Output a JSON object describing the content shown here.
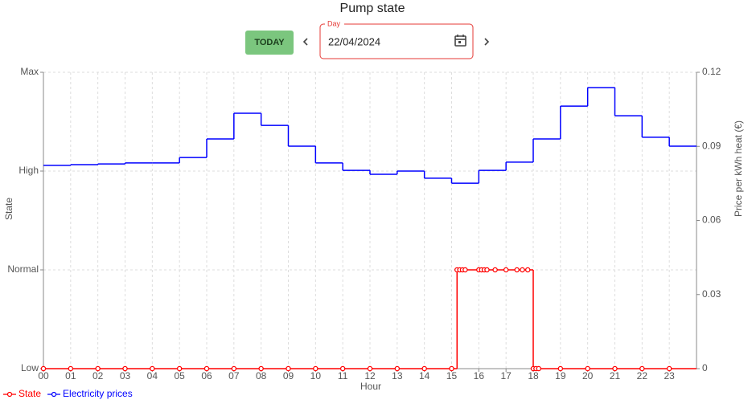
{
  "header": {
    "title": "Pump state",
    "today_button": "TODAY",
    "date_label": "Day",
    "date_value": "22/04/2024"
  },
  "chart_data": {
    "type": "step",
    "xlabel": "Hour",
    "ylabel": "State",
    "y2label": "Price per kWh heat (€)",
    "xlim": [
      0,
      24
    ],
    "xticks": [
      {
        "value": 0,
        "label": "00"
      },
      {
        "value": 1,
        "label": "01"
      },
      {
        "value": 2,
        "label": "02"
      },
      {
        "value": 3,
        "label": "03"
      },
      {
        "value": 4,
        "label": "04"
      },
      {
        "value": 5,
        "label": "05"
      },
      {
        "value": 6,
        "label": "06"
      },
      {
        "value": 7,
        "label": "07"
      },
      {
        "value": 8,
        "label": "08"
      },
      {
        "value": 9,
        "label": "09"
      },
      10,
      11,
      12,
      13,
      14,
      15,
      16,
      17,
      18,
      19,
      20,
      21,
      22,
      23
    ],
    "ylim": [
      0,
      3
    ],
    "yticks": [
      {
        "value": 0,
        "label": "Low"
      },
      {
        "value": 1,
        "label": "Normal"
      },
      {
        "value": 2,
        "label": "High"
      },
      {
        "value": 3,
        "label": "Max"
      }
    ],
    "y2lim": [
      0,
      0.12
    ],
    "y2ticks": [
      0,
      0.03,
      0.06,
      0.09,
      0.12
    ],
    "grid": true,
    "legend": "bottom-left",
    "series": [
      {
        "name": "State",
        "color": "#ff0000",
        "x": [
          0,
          1,
          2,
          3,
          4,
          5,
          6,
          7,
          8,
          9,
          10,
          11,
          12,
          13,
          14,
          15,
          15.2,
          15.3,
          15.4,
          15.5,
          16.0,
          16.1,
          16.2,
          16.3,
          16.6,
          17.0,
          17.4,
          17.6,
          17.8,
          18.0,
          18.1,
          18.2,
          19,
          20,
          21,
          22,
          23
        ],
        "values": [
          0,
          0,
          0,
          0,
          0,
          0,
          0,
          0,
          0,
          0,
          0,
          0,
          0,
          0,
          0,
          0,
          1,
          1,
          1,
          1,
          1,
          1,
          1,
          1,
          1,
          1,
          1,
          1,
          1,
          0,
          0,
          0,
          0,
          0,
          0,
          0,
          0
        ]
      },
      {
        "name": "Electricity prices",
        "color": "#0000ff",
        "axis": "y2",
        "x": [
          0,
          1,
          2,
          3,
          4,
          5,
          6,
          7,
          8,
          9,
          10,
          11,
          12,
          13,
          14,
          15,
          16,
          17,
          18,
          19,
          20,
          21,
          22,
          23
        ],
        "values": [
          0.0823,
          0.0826,
          0.0829,
          0.0833,
          0.0833,
          0.0855,
          0.093,
          0.1034,
          0.0985,
          0.0901,
          0.0833,
          0.0803,
          0.0787,
          0.08,
          0.0771,
          0.0751,
          0.0803,
          0.0836,
          0.093,
          0.1063,
          0.1138,
          0.1024,
          0.0937,
          0.0901
        ]
      }
    ]
  }
}
